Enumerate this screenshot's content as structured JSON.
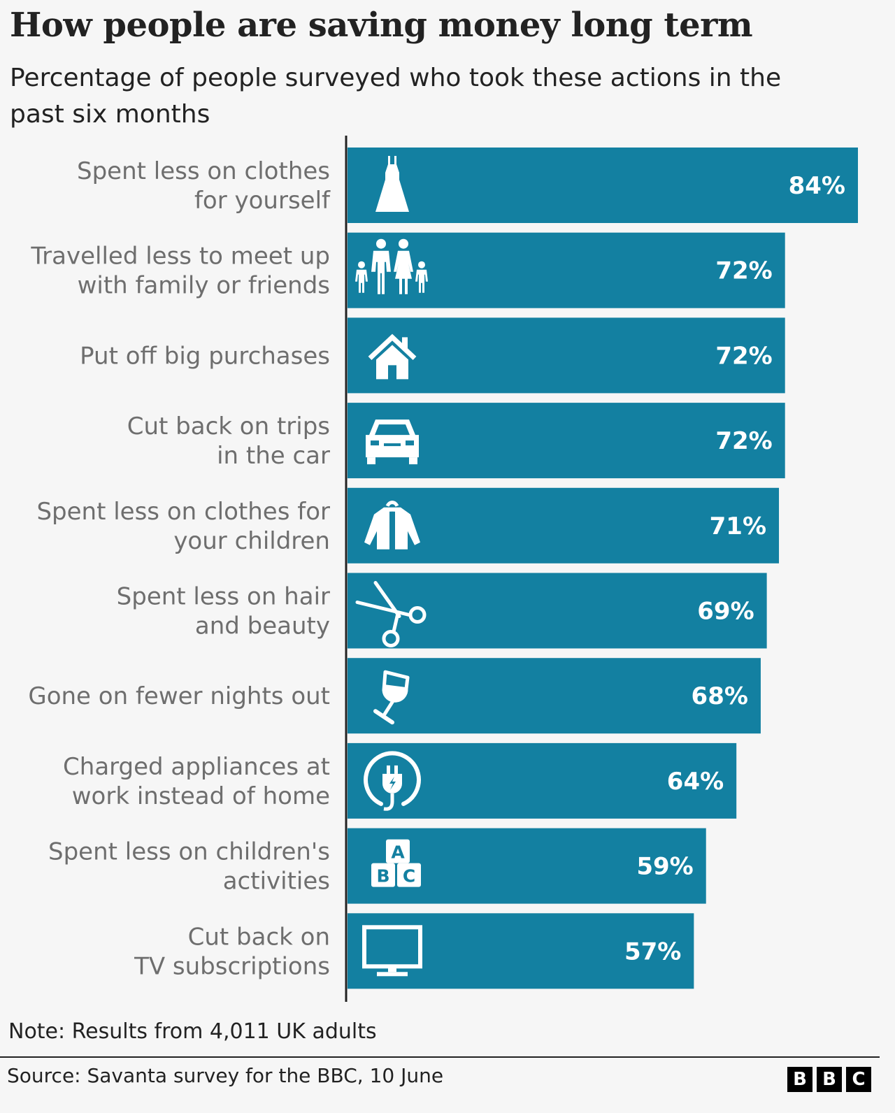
{
  "header": {
    "title": "How people are saving money long term",
    "subtitle": "Percentage of people surveyed who took these actions in the past six months"
  },
  "footer": {
    "note": "Note: Results from 4,011 UK adults",
    "source": "Source: Savanta survey for the BBC, 10 June",
    "logo_letters": [
      "B",
      "B",
      "C"
    ]
  },
  "colors": {
    "bar": "#1380a1",
    "axis": "#222222",
    "label": "#6e6e6e",
    "background": "#f6f6f6"
  },
  "chart_data": {
    "type": "bar",
    "orientation": "horizontal",
    "title": "How people are saving money long term",
    "subtitle": "Percentage of people surveyed who took these actions in the past six months",
    "xlabel": "",
    "ylabel": "",
    "xlim": [
      0,
      84
    ],
    "grid": false,
    "legend": "none",
    "categories": [
      [
        "Spent less on clothes",
        "for yourself"
      ],
      [
        "Travelled less to meet up",
        "with family or friends"
      ],
      [
        "Put off big purchases"
      ],
      [
        "Cut back on trips",
        "in the car"
      ],
      [
        "Spent less on clothes for",
        "your children"
      ],
      [
        "Spent less on hair",
        "and beauty"
      ],
      [
        "Gone on fewer nights out"
      ],
      [
        "Charged appliances at",
        "work instead of home"
      ],
      [
        "Spent less on children's",
        "activities"
      ],
      [
        "Cut back on",
        "TV subscriptions"
      ]
    ],
    "values": [
      84,
      72,
      72,
      72,
      71,
      69,
      68,
      64,
      59,
      57
    ],
    "value_labels": [
      "84%",
      "72%",
      "72%",
      "72%",
      "71%",
      "69%",
      "68%",
      "64%",
      "59%",
      "57%"
    ],
    "icons": [
      "dress-icon",
      "family-icon",
      "house-icon",
      "car-icon",
      "jacket-icon",
      "scissors-icon",
      "wine-glass-icon",
      "plug-icon",
      "abc-blocks-icon",
      "tv-icon"
    ],
    "icon_letters": [
      "A",
      "B",
      "C"
    ]
  }
}
